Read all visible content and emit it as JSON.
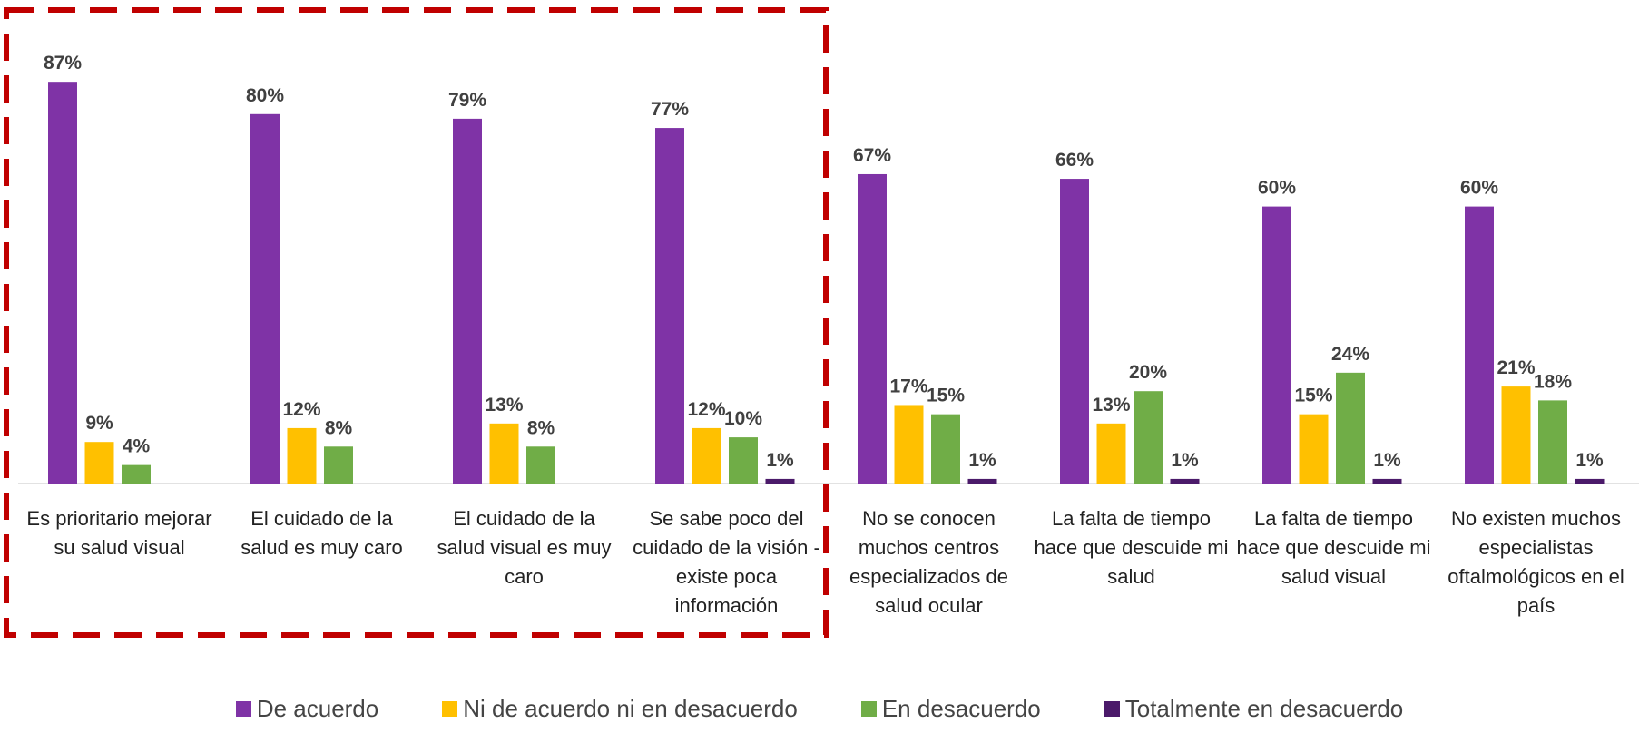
{
  "chart_data": {
    "type": "bar",
    "categories": [
      "Es prioritario mejorar su salud visual",
      "El cuidado de la salud es muy caro",
      "El cuidado de la salud visual es muy caro",
      "Se sabe poco del cuidado de la visión - existe poca información",
      "No se conocen muchos centros especializados de salud ocular",
      "La falta de tiempo hace que descuide mi salud",
      "La falta de tiempo hace que descuide mi salud visual",
      "No existen muchos especialistas oftalmológicos en el país"
    ],
    "series": [
      {
        "name": "De acuerdo",
        "color": "#7f33a6",
        "values": [
          87,
          80,
          79,
          77,
          67,
          66,
          60,
          60
        ],
        "value_labels": [
          "87%",
          "80%",
          "79%",
          "77%",
          "67%",
          "66%",
          "60%",
          "60%"
        ]
      },
      {
        "name": "Ni de acuerdo ni en desacuerdo",
        "color": "#ffc000",
        "values": [
          9,
          12,
          13,
          12,
          17,
          13,
          15,
          21
        ],
        "value_labels": [
          "9%",
          "12%",
          "13%",
          "12%",
          "17%",
          "13%",
          "15%",
          "21%"
        ]
      },
      {
        "name": "En desacuerdo",
        "color": "#70ad47",
        "values": [
          4,
          8,
          8,
          10,
          15,
          20,
          24,
          18
        ],
        "value_labels": [
          "4%",
          "8%",
          "8%",
          "10%",
          "15%",
          "20%",
          "24%",
          "18%"
        ]
      },
      {
        "name": "Totalmente en desacuerdo",
        "color": "#4b1a6a",
        "values": [
          null,
          null,
          null,
          1,
          1,
          1,
          1,
          1
        ],
        "value_labels": [
          null,
          null,
          null,
          "1%",
          "1%",
          "1%",
          "1%",
          "1%"
        ]
      }
    ],
    "legend": "bottom"
  }
}
